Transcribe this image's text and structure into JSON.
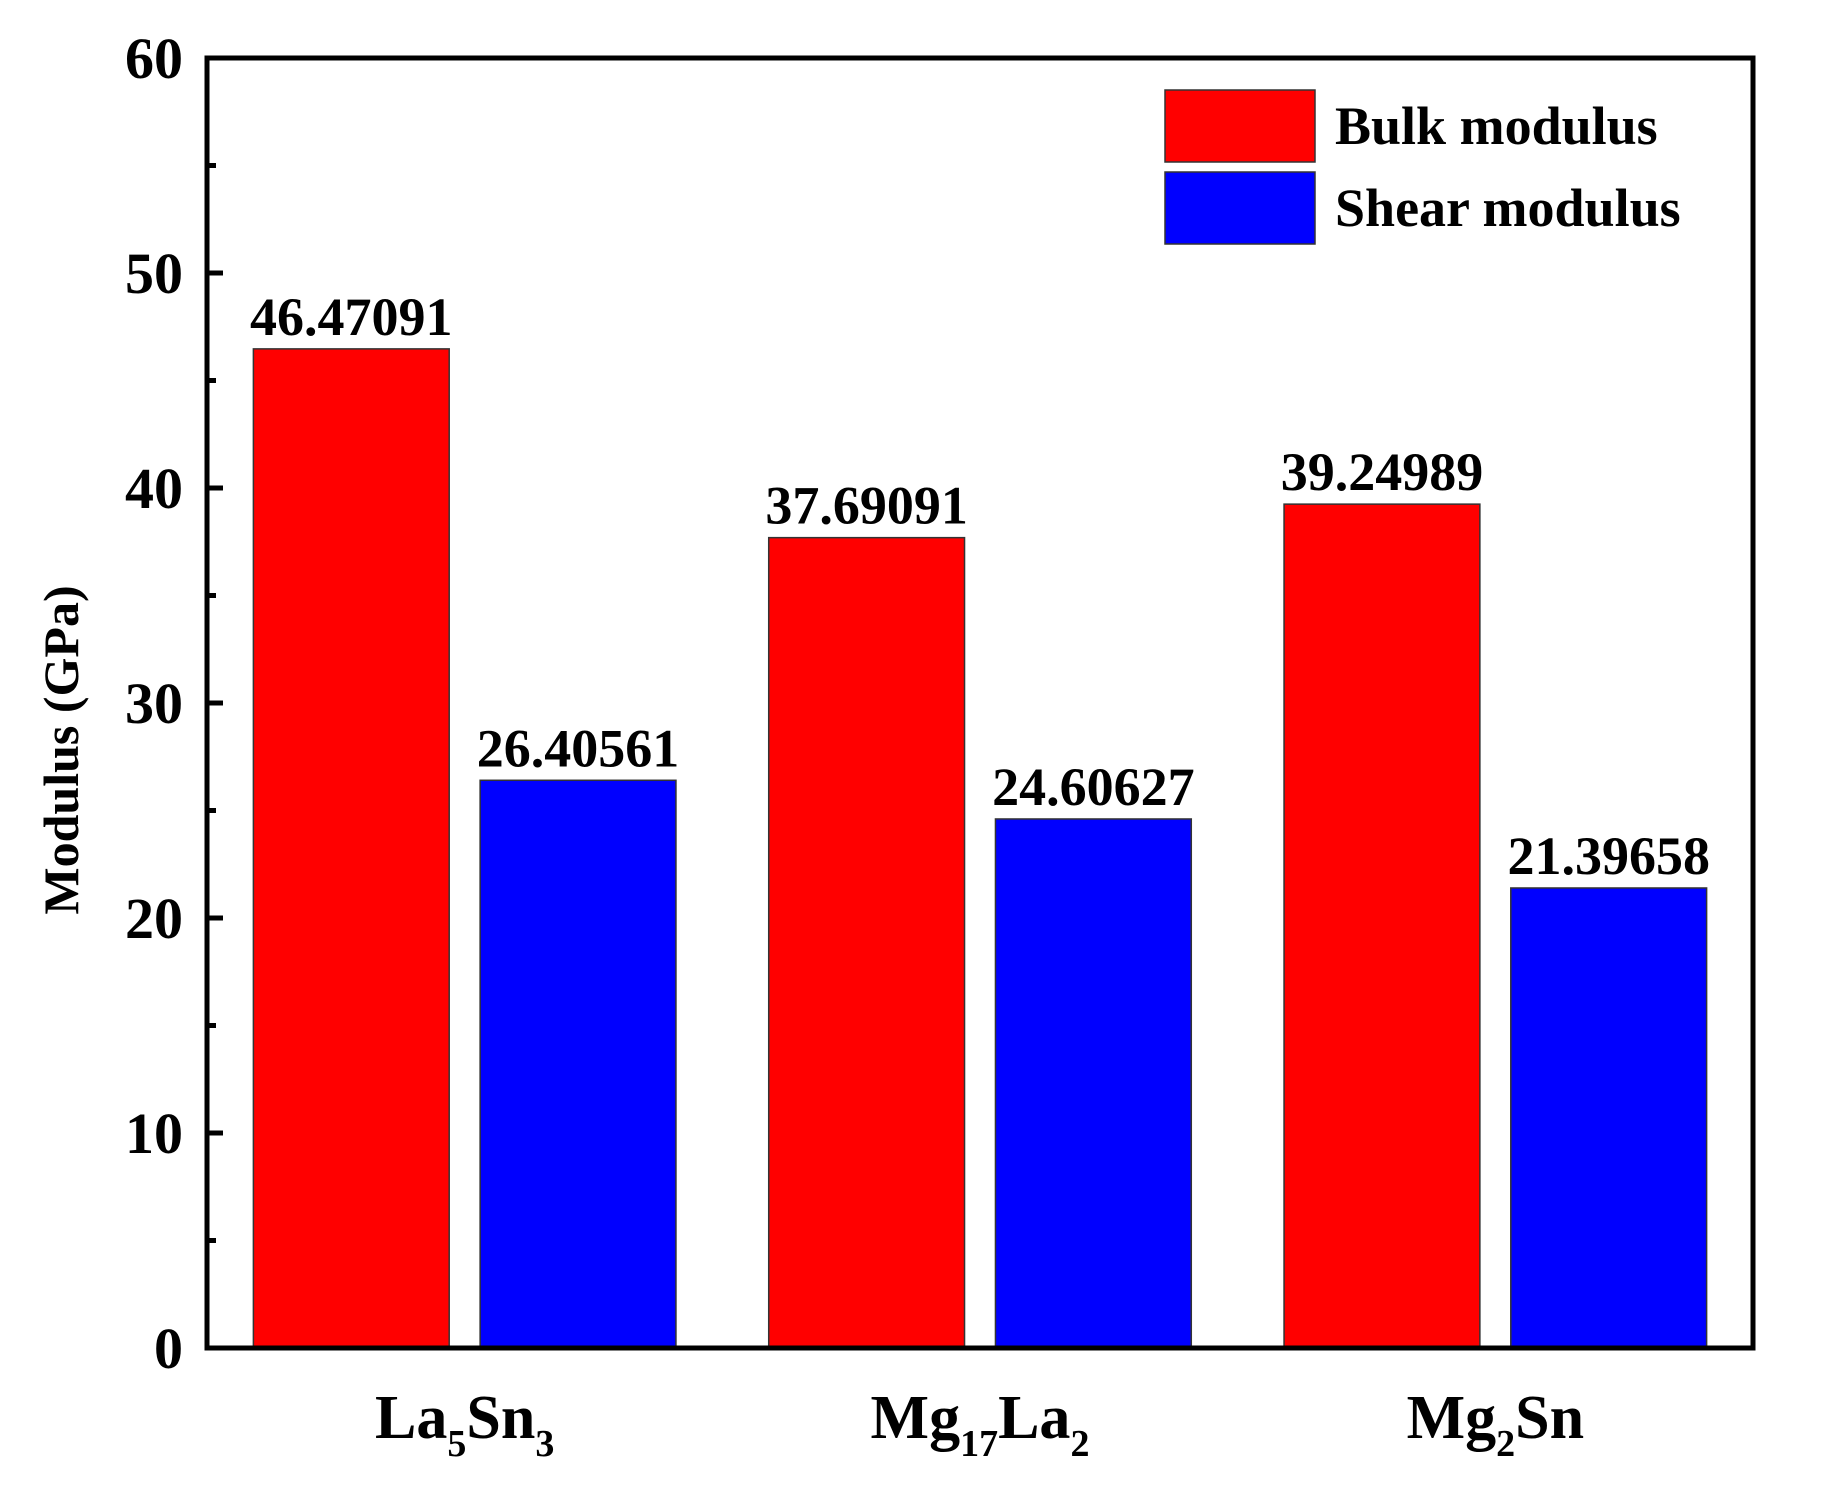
{
  "chart_data": {
    "type": "bar",
    "title": "",
    "xlabel": "",
    "ylabel": "Modulus (GPa)",
    "ylim": [
      0,
      60
    ],
    "yticks": [
      0,
      10,
      20,
      30,
      40,
      50,
      60
    ],
    "categories": [
      {
        "base": "La",
        "sub1": "5",
        "mid": "Sn",
        "sub2": "3"
      },
      {
        "base": "Mg",
        "sub1": "17",
        "mid": "La",
        "sub2": "2"
      },
      {
        "base": "Mg",
        "sub1": "2",
        "mid": "Sn",
        "sub2": ""
      }
    ],
    "series": [
      {
        "name": "Bulk modulus",
        "color": "#ff0000",
        "values": [
          46.47091,
          37.69091,
          39.24989
        ],
        "labels": [
          "46.47091",
          "37.69091",
          "39.24989"
        ]
      },
      {
        "name": "Shear modulus",
        "color": "#0000ff",
        "values": [
          26.40561,
          24.60627,
          21.39658
        ],
        "labels": [
          "26.40561",
          "24.60627",
          "21.39658"
        ]
      }
    ],
    "legend_position": "top-right",
    "grid": false
  }
}
